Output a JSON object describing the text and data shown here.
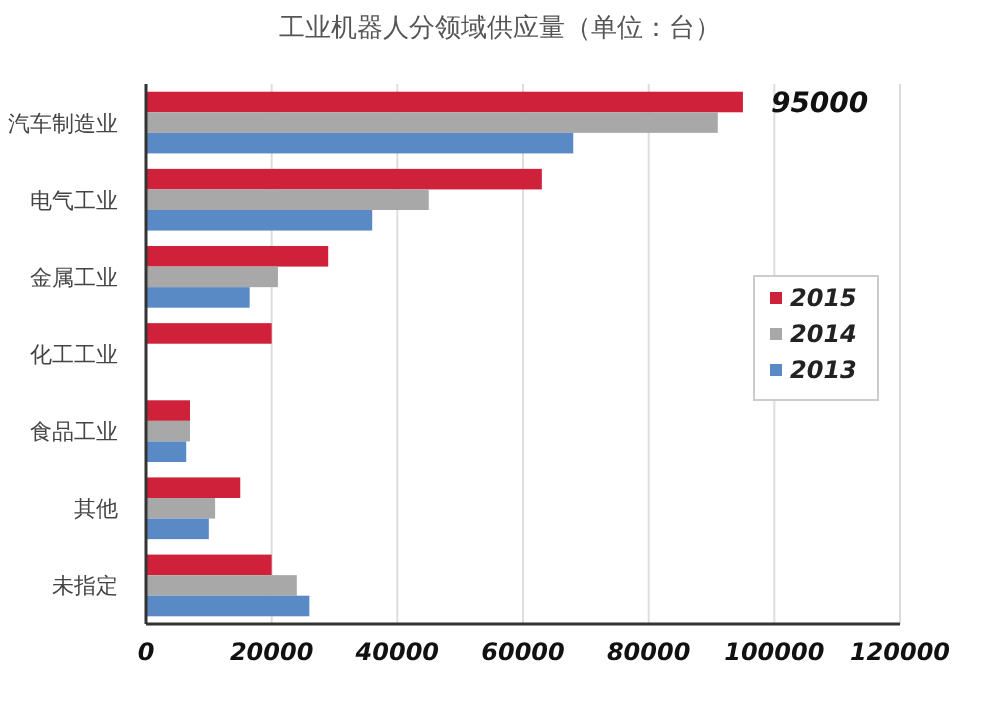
{
  "chart_data": {
    "type": "bar",
    "orientation": "horizontal",
    "title": "工业机器人分领域供应量（单位：台）",
    "categories": [
      "汽车制造业",
      "电气工业",
      "金属工业",
      "化工工业",
      "食品工业",
      "其他",
      "未指定"
    ],
    "series": [
      {
        "name": "2015",
        "color": "#d0213b",
        "values": [
          95000,
          63000,
          29000,
          20000,
          7000,
          15000,
          20000
        ],
        "value_labels": [
          "95000",
          null,
          null,
          null,
          null,
          null,
          null
        ]
      },
      {
        "name": "2014",
        "color": "#a8a8a8",
        "values": [
          91000,
          45000,
          21000,
          null,
          7000,
          11000,
          24000
        ]
      },
      {
        "name": "2013",
        "color": "#5a8ac6",
        "values": [
          68000,
          36000,
          16500,
          null,
          6400,
          10000,
          26000
        ]
      }
    ],
    "xlim": [
      0,
      120000
    ],
    "xticks": [
      0,
      20000,
      40000,
      60000,
      80000,
      100000,
      120000
    ],
    "grid": "x",
    "legend": "right"
  }
}
